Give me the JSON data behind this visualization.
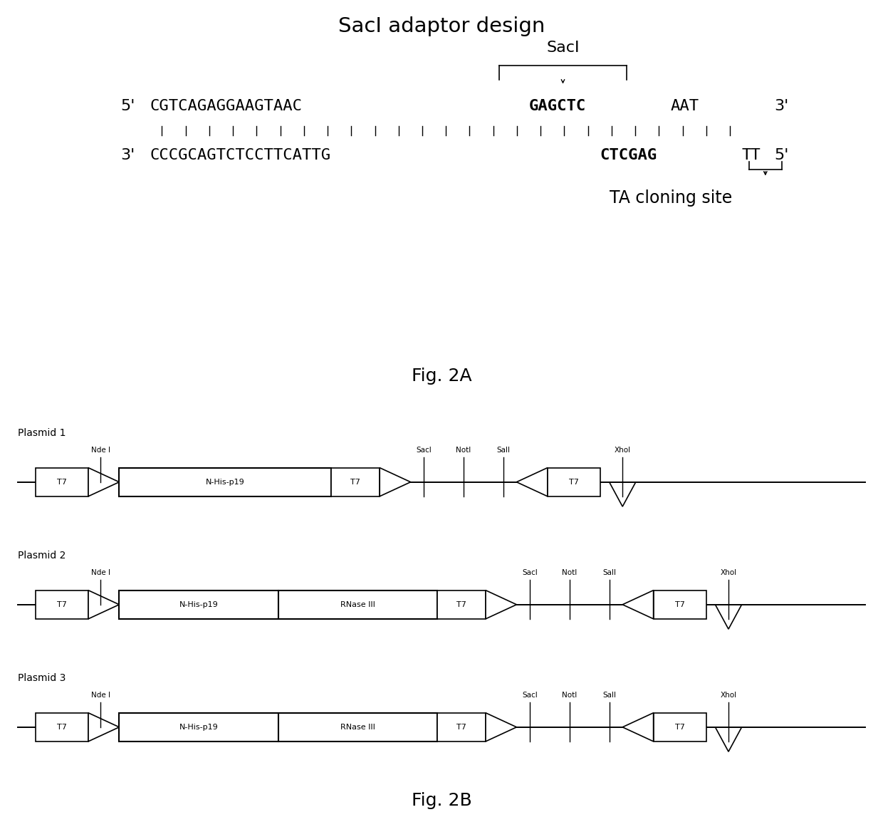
{
  "title_2a": "SacI adaptor design",
  "sacl_label": "SacI",
  "ta_label": "TA cloning site",
  "fig2a_label": "Fig. 2A",
  "fig2b_label": "Fig. 2B",
  "strand1_normal": "CGTCAGAGGAAGTAAC",
  "strand1_bold": "GAGCTC",
  "strand1_end": "AAT",
  "strand2_normal_start": "CCCGCAGTCTCCTTCATTG",
  "strand2_bold": "CTCGAG",
  "strand2_end": "TT",
  "plasmid_labels": [
    "Plasmid 1",
    "Plasmid 2",
    "Plasmid 3"
  ],
  "bg_color": "#ffffff"
}
